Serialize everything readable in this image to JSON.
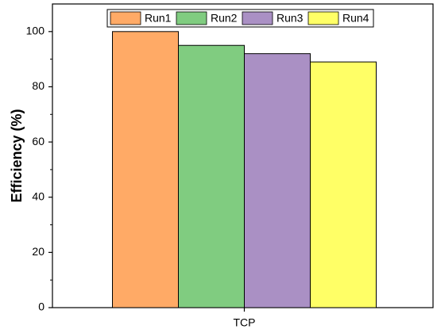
{
  "chart_data": {
    "type": "bar",
    "categories": [
      "TCP"
    ],
    "series": [
      {
        "name": "Run1",
        "values": [
          100
        ],
        "color": "#FFAA66"
      },
      {
        "name": "Run2",
        "values": [
          95
        ],
        "color": "#80CC80"
      },
      {
        "name": "Run3",
        "values": [
          92
        ],
        "color": "#AA90C4"
      },
      {
        "name": "Run4",
        "values": [
          89
        ],
        "color": "#FFFF66"
      }
    ],
    "title": "",
    "xlabel": "",
    "ylabel": "Efficiency (%)",
    "ylim": [
      0,
      110
    ],
    "yticks": [
      "0",
      "20",
      "40",
      "60",
      "80",
      "100"
    ],
    "grid": false,
    "legend_position": "top"
  }
}
